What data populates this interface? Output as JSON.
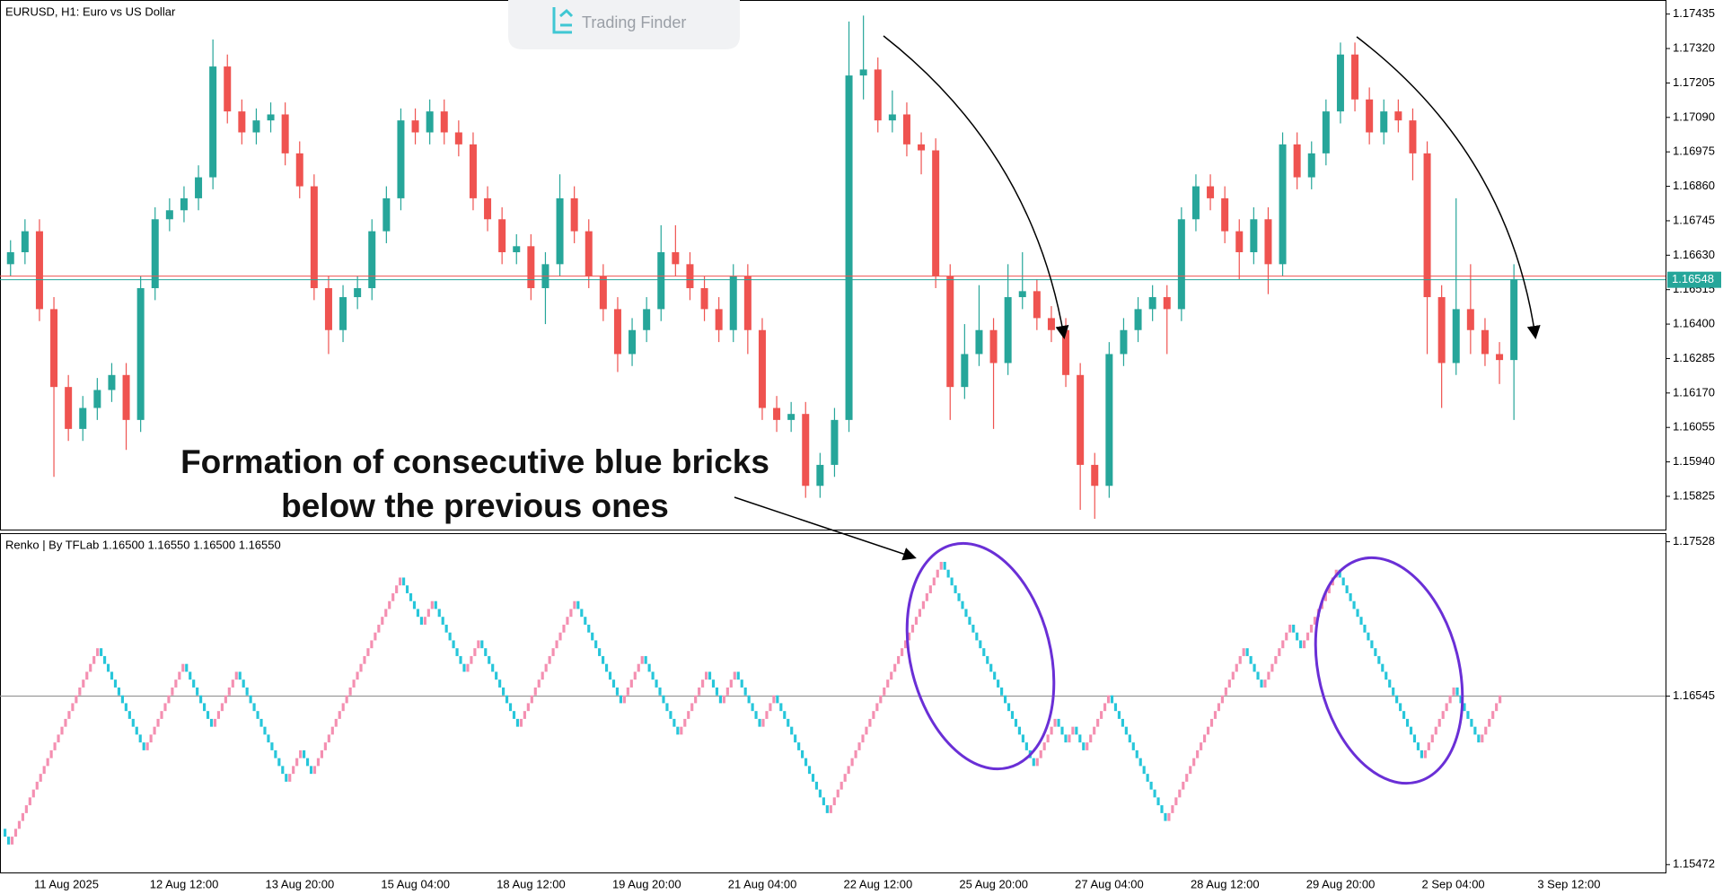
{
  "logo_text": "Trading Finder",
  "annotation_lines": [
    "Formation of consecutive blue bricks",
    "below the previous ones"
  ],
  "chart_data": [
    {
      "type": "candlestick",
      "title": "EURUSD, H1:  Euro vs US Dollar",
      "categories": [
        null,
        null,
        "11 Aug 2025",
        null,
        null,
        null,
        null,
        null,
        null,
        null,
        "12 Aug 12:00",
        null,
        null,
        null,
        null,
        null,
        null,
        null,
        "13 Aug 20:00",
        null,
        null,
        null,
        null,
        null,
        null,
        null,
        "15 Aug 04:00",
        null,
        null,
        null,
        null,
        null,
        null,
        null,
        "18 Aug 12:00",
        null,
        null,
        null,
        null,
        null,
        null,
        null,
        "19 Aug 20:00",
        null,
        null,
        null,
        null,
        null,
        null,
        null,
        "21 Aug 04:00",
        null,
        null,
        null,
        null,
        null,
        null,
        null,
        "22 Aug 12:00",
        null,
        null,
        null,
        null,
        null,
        null,
        null,
        "25 Aug 20:00",
        null,
        null,
        null,
        null,
        null,
        null,
        null,
        "27 Aug 04:00",
        null,
        null,
        null,
        null,
        null,
        null,
        null,
        "28 Aug 12:00",
        null,
        null,
        null,
        null,
        null,
        null,
        null,
        "29 Aug 20:00",
        null,
        null,
        null,
        null,
        null,
        null,
        null,
        "2 Sep 04:00",
        null,
        null,
        null,
        null,
        null,
        null,
        null,
        "3 Sep 12:00"
      ],
      "open": [
        1.166,
        1.1664,
        1.1671,
        1.1645,
        1.1619,
        1.1605,
        1.1612,
        1.1618,
        1.1623,
        1.1608,
        1.1652,
        1.1675,
        1.1678,
        1.1682,
        1.1689,
        1.1726,
        1.1711,
        1.1704,
        1.1708,
        1.171,
        1.1697,
        1.1686,
        1.1652,
        1.1638,
        1.1649,
        1.1652,
        1.1671,
        1.1682,
        1.1708,
        1.1704,
        1.1711,
        1.1704,
        1.17,
        1.1682,
        1.1675,
        1.1664,
        1.1666,
        1.1652,
        1.166,
        1.1682,
        1.1671,
        1.1656,
        1.1645,
        1.163,
        1.1638,
        1.1645,
        1.1664,
        1.166,
        1.1652,
        1.1645,
        1.1638,
        1.1656,
        1.1638,
        1.1612,
        1.1608,
        1.161,
        1.1586,
        1.1593,
        1.1608,
        1.1723,
        1.1725,
        1.1708,
        1.171,
        1.17,
        1.1698,
        1.1656,
        1.1619,
        1.163,
        1.1638,
        1.1627,
        1.1649,
        1.1651,
        1.1642,
        1.1638,
        1.1623,
        1.1593,
        1.1586,
        1.163,
        1.1638,
        1.1645,
        1.1649,
        1.1645,
        1.1675,
        1.1686,
        1.1682,
        1.1671,
        1.1664,
        1.1675,
        1.166,
        1.17,
        1.1689,
        1.1697,
        1.1711,
        1.173,
        1.1715,
        1.1704,
        1.1711,
        1.1708,
        1.1697,
        1.1649,
        1.1627,
        1.1645,
        1.1638,
        1.163,
        1.1628,
        null,
        null
      ],
      "high": [
        1.1668,
        1.1675,
        1.1675,
        1.1649,
        1.1623,
        1.1616,
        1.1622,
        1.1627,
        1.1627,
        1.1656,
        1.1679,
        1.1682,
        1.1686,
        1.1693,
        1.1735,
        1.173,
        1.1715,
        1.1712,
        1.1714,
        1.1714,
        1.1701,
        1.169,
        1.1656,
        1.1653,
        1.1656,
        1.1675,
        1.1686,
        1.1712,
        1.1712,
        1.1715,
        1.1715,
        1.1708,
        1.1704,
        1.1686,
        1.1679,
        1.167,
        1.167,
        1.1664,
        1.169,
        1.1686,
        1.1675,
        1.166,
        1.1649,
        1.1642,
        1.1649,
        1.1673,
        1.1673,
        1.1664,
        1.1656,
        1.1649,
        1.166,
        1.166,
        1.1642,
        1.1616,
        1.1614,
        1.1614,
        1.1597,
        1.1612,
        1.1741,
        1.1743,
        1.1729,
        1.1718,
        1.1714,
        1.1704,
        1.1702,
        1.166,
        1.164,
        1.1653,
        1.1642,
        1.166,
        1.1664,
        1.1655,
        1.1646,
        1.1642,
        1.1627,
        1.1597,
        1.1634,
        1.1642,
        1.1649,
        1.1653,
        1.1653,
        1.1679,
        1.169,
        1.169,
        1.1686,
        1.1675,
        1.1679,
        1.1679,
        1.1704,
        1.1704,
        1.1701,
        1.1715,
        1.1734,
        1.1734,
        1.1719,
        1.1715,
        1.1715,
        1.1712,
        1.1701,
        1.1653,
        1.1682,
        1.166,
        1.1642,
        1.1634,
        1.166,
        null,
        null
      ],
      "low": [
        1.1656,
        1.166,
        1.1641,
        1.1589,
        1.1601,
        1.1601,
        1.1608,
        1.1614,
        1.1598,
        1.1604,
        1.1648,
        1.1671,
        1.1674,
        1.1678,
        1.1685,
        1.1707,
        1.17,
        1.17,
        1.1704,
        1.1693,
        1.1682,
        1.1648,
        1.163,
        1.1634,
        1.1645,
        1.1648,
        1.1667,
        1.1678,
        1.17,
        1.17,
        1.17,
        1.1696,
        1.1678,
        1.1671,
        1.166,
        1.166,
        1.1648,
        1.164,
        1.1656,
        1.1667,
        1.1652,
        1.1641,
        1.1624,
        1.1626,
        1.1634,
        1.1641,
        1.1656,
        1.1648,
        1.1641,
        1.1634,
        1.1634,
        1.163,
        1.1608,
        1.1604,
        1.1604,
        1.1582,
        1.1582,
        1.1589,
        1.1604,
        1.1715,
        1.1704,
        1.1704,
        1.1696,
        1.169,
        1.1652,
        1.1608,
        1.1615,
        1.1626,
        1.1605,
        1.1623,
        1.1645,
        1.1638,
        1.1634,
        1.1619,
        1.1578,
        1.1575,
        1.1582,
        1.1626,
        1.1634,
        1.1641,
        1.163,
        1.1641,
        1.1671,
        1.1678,
        1.1667,
        1.1655,
        1.166,
        1.165,
        1.1656,
        1.1685,
        1.1685,
        1.1693,
        1.1707,
        1.1711,
        1.17,
        1.17,
        1.1704,
        1.1688,
        1.163,
        1.1612,
        1.1623,
        1.163,
        1.1626,
        1.162,
        1.1608,
        null,
        null
      ],
      "close": [
        1.1664,
        1.1671,
        1.1645,
        1.1619,
        1.1605,
        1.1612,
        1.1618,
        1.1623,
        1.1608,
        1.1652,
        1.1675,
        1.1678,
        1.1682,
        1.1689,
        1.1726,
        1.1711,
        1.1704,
        1.1708,
        1.171,
        1.1697,
        1.1686,
        1.1652,
        1.1638,
        1.1649,
        1.1652,
        1.1671,
        1.1682,
        1.1708,
        1.1704,
        1.1711,
        1.1704,
        1.17,
        1.1682,
        1.1675,
        1.1664,
        1.1666,
        1.1652,
        1.166,
        1.1682,
        1.1671,
        1.1656,
        1.1645,
        1.163,
        1.1638,
        1.1645,
        1.1664,
        1.166,
        1.1652,
        1.1645,
        1.1638,
        1.1656,
        1.1638,
        1.1612,
        1.1608,
        1.161,
        1.1586,
        1.1593,
        1.1608,
        1.1723,
        1.1725,
        1.1708,
        1.171,
        1.17,
        1.1698,
        1.1656,
        1.1619,
        1.163,
        1.1638,
        1.1627,
        1.1649,
        1.1651,
        1.1642,
        1.1638,
        1.1623,
        1.1593,
        1.1586,
        1.163,
        1.1638,
        1.1645,
        1.1649,
        1.1645,
        1.1675,
        1.1686,
        1.1682,
        1.1671,
        1.1664,
        1.1675,
        1.166,
        1.17,
        1.1689,
        1.1697,
        1.1711,
        1.173,
        1.1715,
        1.1704,
        1.1711,
        1.1708,
        1.1697,
        1.1649,
        1.1627,
        1.1645,
        1.1638,
        1.163,
        1.1628,
        1.1655,
        null,
        null
      ],
      "up_color": "#26a69a",
      "down_color": "#ef5350",
      "bid": 1.16548,
      "bid_color": "#26a69a",
      "ask": 1.1656,
      "ask_color": "#ef5350",
      "ylim": [
        1.15714,
        1.17476
      ],
      "yticks": [
        1.17435,
        {
          "value": 1.1732,
          "label": "1.17320"
        },
        1.17205,
        {
          "value": 1.1709,
          "label": "1.17090"
        },
        1.16975,
        {
          "value": 1.1686,
          "label": "1.16860"
        },
        1.16745,
        {
          "value": 1.1663,
          "label": "1.16630"
        },
        1.16515,
        {
          "value": 1.164,
          "label": "1.16400"
        },
        1.16285,
        {
          "value": 1.1617,
          "label": "1.16170"
        },
        1.16055,
        {
          "value": 1.1594,
          "label": "1.15940"
        },
        1.15825
      ]
    },
    {
      "type": "renko",
      "legend": "Renko | By TFLab 1.16500 1.16550 1.16500 1.16550",
      "up_color": "#f48fb1",
      "down_color": "#26c6da",
      "level_line": 1.16545,
      "ylim": [
        1.15422,
        1.17577
      ],
      "yticks": [
        1.17528,
        1.16545,
        1.15472
      ],
      "values": [
        1.157,
        1.1565,
        1.156,
        1.1565,
        1.157,
        1.1575,
        1.158,
        1.1585,
        1.159,
        1.1595,
        1.16,
        1.1605,
        1.161,
        1.1615,
        1.162,
        1.1625,
        1.163,
        1.1635,
        1.164,
        1.1645,
        1.165,
        1.1655,
        1.166,
        1.1665,
        1.167,
        1.1675,
        1.168,
        1.1685,
        1.168,
        1.1675,
        1.167,
        1.1665,
        1.166,
        1.1655,
        1.165,
        1.1645,
        1.164,
        1.1635,
        1.163,
        1.1625,
        1.162,
        1.1625,
        1.163,
        1.1635,
        1.164,
        1.1645,
        1.165,
        1.1655,
        1.166,
        1.1665,
        1.167,
        1.1675,
        1.167,
        1.1665,
        1.166,
        1.1655,
        1.165,
        1.1645,
        1.164,
        1.1635,
        1.164,
        1.1645,
        1.165,
        1.1655,
        1.166,
        1.1665,
        1.167,
        1.1665,
        1.166,
        1.1655,
        1.165,
        1.1645,
        1.164,
        1.1635,
        1.163,
        1.1625,
        1.162,
        1.1615,
        1.161,
        1.1605,
        1.16,
        1.1605,
        1.161,
        1.1615,
        1.162,
        1.1615,
        1.161,
        1.1605,
        1.161,
        1.1615,
        1.162,
        1.1625,
        1.163,
        1.1635,
        1.164,
        1.1645,
        1.165,
        1.1655,
        1.166,
        1.1665,
        1.167,
        1.1675,
        1.168,
        1.1685,
        1.169,
        1.1695,
        1.17,
        1.1705,
        1.171,
        1.1715,
        1.172,
        1.1725,
        1.173,
        1.1725,
        1.172,
        1.1715,
        1.171,
        1.1705,
        1.17,
        1.1705,
        1.171,
        1.1715,
        1.171,
        1.1705,
        1.17,
        1.1695,
        1.169,
        1.1685,
        1.168,
        1.1675,
        1.167,
        1.1675,
        1.168,
        1.1685,
        1.169,
        1.1685,
        1.168,
        1.1675,
        1.167,
        1.1665,
        1.166,
        1.1655,
        1.165,
        1.1645,
        1.164,
        1.1635,
        1.164,
        1.1645,
        1.165,
        1.1655,
        1.166,
        1.1665,
        1.167,
        1.1675,
        1.168,
        1.1685,
        1.169,
        1.1695,
        1.17,
        1.1705,
        1.171,
        1.1715,
        1.171,
        1.1705,
        1.17,
        1.1695,
        1.169,
        1.1685,
        1.168,
        1.1675,
        1.167,
        1.1665,
        1.166,
        1.1655,
        1.165,
        1.1655,
        1.166,
        1.1665,
        1.167,
        1.1675,
        1.168,
        1.1675,
        1.167,
        1.1665,
        1.166,
        1.1655,
        1.165,
        1.1645,
        1.164,
        1.1635,
        1.163,
        1.1635,
        1.164,
        1.1645,
        1.165,
        1.1655,
        1.166,
        1.1665,
        1.167,
        1.1665,
        1.166,
        1.1655,
        1.165,
        1.1655,
        1.166,
        1.1665,
        1.167,
        1.1665,
        1.166,
        1.1655,
        1.165,
        1.1645,
        1.164,
        1.1635,
        1.164,
        1.1645,
        1.165,
        1.1655,
        1.165,
        1.1645,
        1.164,
        1.1635,
        1.163,
        1.1625,
        1.162,
        1.1615,
        1.161,
        1.1605,
        1.16,
        1.1595,
        1.159,
        1.1585,
        1.158,
        1.1585,
        1.159,
        1.1595,
        1.16,
        1.1605,
        1.161,
        1.1615,
        1.162,
        1.1625,
        1.163,
        1.1635,
        1.164,
        1.1645,
        1.165,
        1.1655,
        1.166,
        1.1665,
        1.167,
        1.1675,
        1.168,
        1.1685,
        1.169,
        1.1695,
        1.17,
        1.1705,
        1.171,
        1.1715,
        1.172,
        1.1725,
        1.173,
        1.1735,
        1.174,
        1.1735,
        1.173,
        1.1725,
        1.172,
        1.1715,
        1.171,
        1.1705,
        1.17,
        1.1695,
        1.169,
        1.1685,
        1.168,
        1.1675,
        1.167,
        1.1665,
        1.166,
        1.1655,
        1.165,
        1.1645,
        1.164,
        1.1635,
        1.163,
        1.1625,
        1.162,
        1.1615,
        1.161,
        1.1615,
        1.162,
        1.1625,
        1.163,
        1.1635,
        1.164,
        1.1635,
        1.163,
        1.1625,
        1.163,
        1.1635,
        1.163,
        1.1625,
        1.162,
        1.1625,
        1.163,
        1.1635,
        1.164,
        1.1645,
        1.165,
        1.1655,
        1.165,
        1.1645,
        1.164,
        1.1635,
        1.163,
        1.1625,
        1.162,
        1.1615,
        1.161,
        1.1605,
        1.16,
        1.1595,
        1.159,
        1.1585,
        1.158,
        1.1575,
        1.158,
        1.1585,
        1.159,
        1.1595,
        1.16,
        1.1605,
        1.161,
        1.1615,
        1.162,
        1.1625,
        1.163,
        1.1635,
        1.164,
        1.1645,
        1.165,
        1.1655,
        1.166,
        1.1665,
        1.167,
        1.1675,
        1.168,
        1.1685,
        1.168,
        1.1675,
        1.167,
        1.1665,
        1.166,
        1.1665,
        1.167,
        1.1675,
        1.168,
        1.1685,
        1.169,
        1.1695,
        1.17,
        1.1695,
        1.169,
        1.1685,
        1.169,
        1.1695,
        1.17,
        1.1705,
        1.171,
        1.1715,
        1.172,
        1.1725,
        1.173,
        1.1735,
        1.173,
        1.1725,
        1.172,
        1.1715,
        1.171,
        1.1705,
        1.17,
        1.1695,
        1.169,
        1.1685,
        1.168,
        1.1675,
        1.167,
        1.1665,
        1.166,
        1.1655,
        1.165,
        1.1645,
        1.164,
        1.1635,
        1.163,
        1.1625,
        1.162,
        1.1615,
        1.162,
        1.1625,
        1.163,
        1.1635,
        1.164,
        1.1645,
        1.165,
        1.1655,
        1.166,
        1.1655,
        1.165,
        1.1645,
        1.164,
        1.1635,
        1.163,
        1.1625,
        1.163,
        1.1635,
        1.164,
        1.1645,
        1.165,
        1.1655
      ]
    }
  ]
}
